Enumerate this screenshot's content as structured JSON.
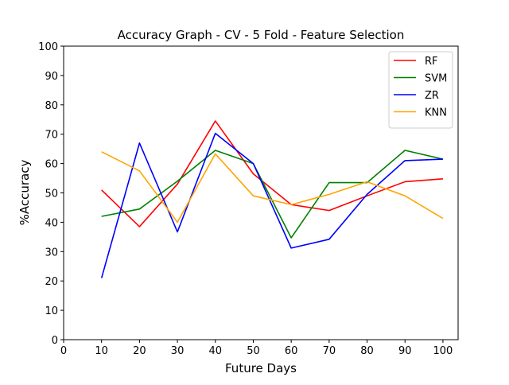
{
  "chart_data": {
    "type": "line",
    "title": "Accuracy Graph - CV - 5 Fold - Feature Selection",
    "xlabel": "Future Days",
    "ylabel": "%Accuracy",
    "xlim": [
      0,
      104
    ],
    "ylim": [
      0,
      100
    ],
    "xticks": [
      0,
      10,
      20,
      30,
      40,
      50,
      60,
      70,
      80,
      90,
      100
    ],
    "yticks": [
      0,
      10,
      20,
      30,
      40,
      50,
      60,
      70,
      80,
      90,
      100
    ],
    "grid": false,
    "legend_position": "top-right",
    "x": [
      10,
      20,
      30,
      40,
      50,
      60,
      70,
      80,
      90,
      100
    ],
    "series": [
      {
        "name": "RF",
        "color": "#ff0000",
        "values": [
          51.0,
          38.5,
          53.0,
          74.5,
          56.5,
          46.0,
          44.0,
          49.0,
          53.8,
          54.8
        ]
      },
      {
        "name": "SVM",
        "color": "#008000",
        "values": [
          42.0,
          44.5,
          54.0,
          64.5,
          60.0,
          34.7,
          53.5,
          53.5,
          64.5,
          61.5
        ]
      },
      {
        "name": "ZR",
        "color": "#0000ff",
        "values": [
          21.0,
          67.0,
          36.7,
          70.3,
          60.0,
          31.2,
          34.2,
          49.5,
          61.0,
          61.5
        ]
      },
      {
        "name": "KNN",
        "color": "#ffa500",
        "values": [
          64.0,
          57.5,
          40.0,
          63.3,
          49.0,
          46.0,
          49.5,
          53.8,
          49.0,
          41.3
        ]
      }
    ]
  }
}
